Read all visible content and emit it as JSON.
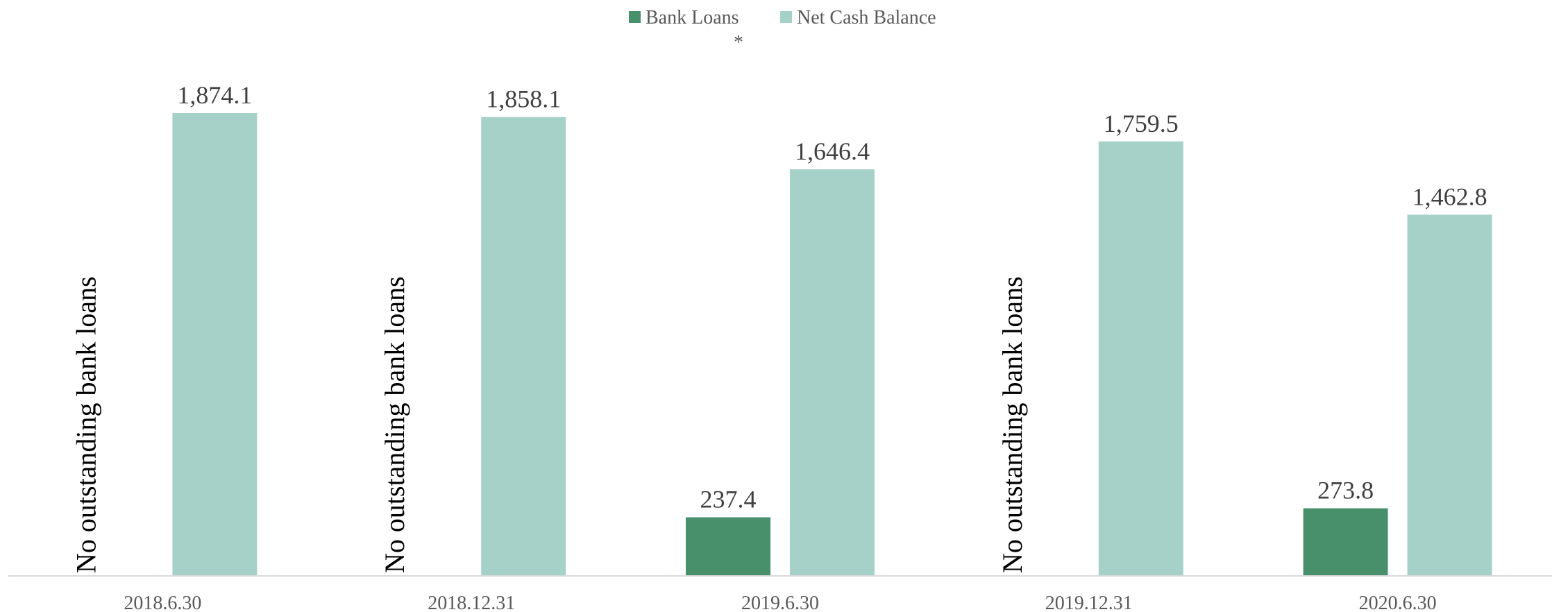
{
  "legend_note": "*",
  "chart_data": {
    "type": "bar",
    "categories": [
      "2018.6.30",
      "2018.12.31",
      "2019.6.30",
      "2019.12.31",
      "2020.6.30"
    ],
    "series": [
      {
        "name": "Bank Loans",
        "values": [
          null,
          null,
          237.4,
          null,
          273.8
        ],
        "color": "#488f6b"
      },
      {
        "name": "Net Cash Balance",
        "values": [
          1874.1,
          1858.1,
          1646.4,
          1759.5,
          1462.8
        ],
        "color": "#a6d1c9"
      }
    ],
    "data_labels": [
      [
        "",
        "",
        "237.4",
        "",
        "273.8"
      ],
      [
        "1,874.1",
        "1,858.1",
        "1,646.4",
        "1,759.5",
        "1,462.8"
      ]
    ],
    "missing_note": "No outstanding bank loans",
    "title": "",
    "xlabel": "",
    "ylabel": "",
    "ylim": [
      0,
      2000
    ],
    "legend_position": "top",
    "grid": false
  }
}
